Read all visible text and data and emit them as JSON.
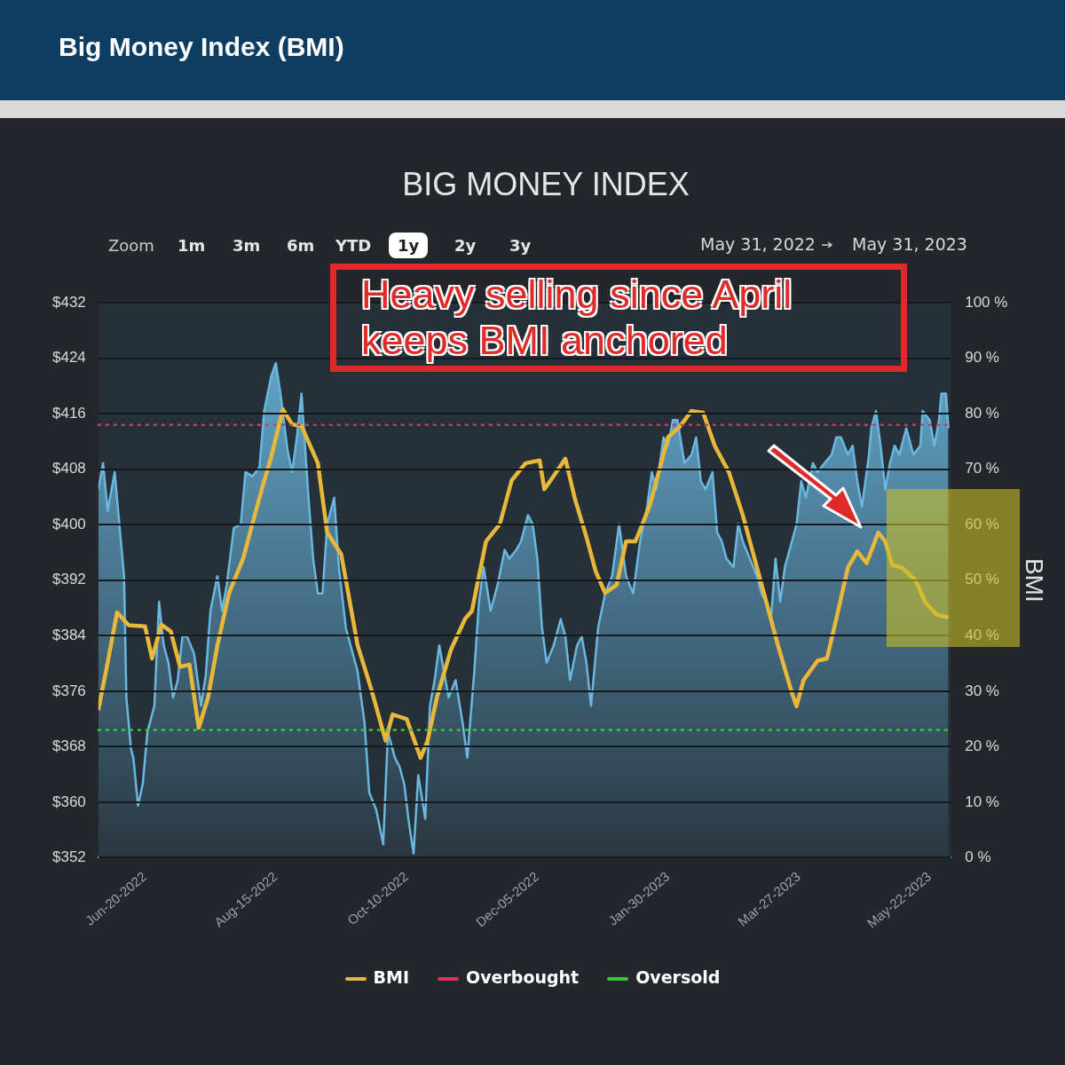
{
  "chart_data": {
    "type": "line",
    "title": "Big Money Index (BMI)",
    "subtitle": "BIG MONEY INDEX",
    "y2label": "BMI",
    "xlim": [
      "2022-05-31",
      "2023-05-31"
    ],
    "xticks": [
      {
        "value": "2022-06-20",
        "label": "Jun-20-2022"
      },
      {
        "value": "2022-08-15",
        "label": "Aug-15-2022"
      },
      {
        "value": "2022-10-10",
        "label": "Oct-10-2022"
      },
      {
        "value": "2022-12-05",
        "label": "Dec-05-2022"
      },
      {
        "value": "2023-01-30",
        "label": "Jan-30-2023"
      },
      {
        "value": "2023-03-27",
        "label": "Mar-27-2023"
      },
      {
        "value": "2023-05-22",
        "label": "May-22-2023"
      }
    ],
    "ylim": [
      352,
      432
    ],
    "yticks": [
      {
        "value": 352,
        "label": "$352"
      },
      {
        "value": 360,
        "label": "$360"
      },
      {
        "value": 368,
        "label": "$368"
      },
      {
        "value": 376,
        "label": "$376"
      },
      {
        "value": 384,
        "label": "$384"
      },
      {
        "value": 392,
        "label": "$392"
      },
      {
        "value": 400,
        "label": "$400"
      },
      {
        "value": 408,
        "label": "$408"
      },
      {
        "value": 416,
        "label": "$416"
      },
      {
        "value": 424,
        "label": "$424"
      },
      {
        "value": 432,
        "label": "$432"
      }
    ],
    "y2lim": [
      0,
      100
    ],
    "y2ticks": [
      {
        "value": 0,
        "label": "0 %"
      },
      {
        "value": 10,
        "label": "10 %"
      },
      {
        "value": 20,
        "label": "20 %"
      },
      {
        "value": 30,
        "label": "30 %"
      },
      {
        "value": 40,
        "label": "40 %"
      },
      {
        "value": 50,
        "label": "50 %"
      },
      {
        "value": 60,
        "label": "60 %"
      },
      {
        "value": 70,
        "label": "70 %"
      },
      {
        "value": 80,
        "label": "80 %"
      },
      {
        "value": 90,
        "label": "90 %"
      },
      {
        "value": 100,
        "label": "100 %"
      }
    ],
    "grid": "y",
    "legend": "bottom",
    "marker": "none",
    "line_style": "solid",
    "series": [
      {
        "type": "area",
        "color": "#6ab7e0",
        "x": [
          "2022-05-31",
          "2022-06-02",
          "2022-06-04",
          "2022-06-07",
          "2022-06-09",
          "2022-06-11",
          "2022-06-12",
          "2022-06-14",
          "2022-06-15",
          "2022-06-17",
          "2022-06-19",
          "2022-06-21",
          "2022-06-23",
          "2022-06-24",
          "2022-06-26",
          "2022-06-28",
          "2022-06-30",
          "2022-07-02",
          "2022-07-04",
          "2022-07-06",
          "2022-07-08",
          "2022-07-11",
          "2022-07-14",
          "2022-07-16",
          "2022-07-18",
          "2022-07-21",
          "2022-07-23",
          "2022-07-25",
          "2022-07-28",
          "2022-07-31",
          "2022-08-02",
          "2022-08-05",
          "2022-08-08",
          "2022-08-10",
          "2022-08-13",
          "2022-08-15",
          "2022-08-17",
          "2022-08-20",
          "2022-08-22",
          "2022-08-24",
          "2022-08-26",
          "2022-08-29",
          "2022-08-31",
          "2022-09-02",
          "2022-09-04",
          "2022-09-06",
          "2022-09-09",
          "2022-09-11",
          "2022-09-14",
          "2022-09-16",
          "2022-09-19",
          "2022-09-22",
          "2022-09-24",
          "2022-09-27",
          "2022-09-30",
          "2022-10-02",
          "2022-10-05",
          "2022-10-07",
          "2022-10-09",
          "2022-10-11",
          "2022-10-13",
          "2022-10-15",
          "2022-10-18",
          "2022-10-20",
          "2022-10-22",
          "2022-10-24",
          "2022-10-26",
          "2022-10-28",
          "2022-10-31",
          "2022-11-03",
          "2022-11-05",
          "2022-11-08",
          "2022-11-10",
          "2022-11-12",
          "2022-11-15",
          "2022-11-18",
          "2022-11-21",
          "2022-11-23",
          "2022-11-26",
          "2022-11-28",
          "2022-12-01",
          "2022-12-03",
          "2022-12-05",
          "2022-12-07",
          "2022-12-09",
          "2022-12-12",
          "2022-12-15",
          "2022-12-17",
          "2022-12-19",
          "2022-12-22",
          "2022-12-24",
          "2022-12-26",
          "2022-12-28",
          "2022-12-31",
          "2023-01-03",
          "2023-01-06",
          "2023-01-09",
          "2023-01-12",
          "2023-01-15",
          "2023-01-18",
          "2023-01-21",
          "2023-01-23",
          "2023-01-25",
          "2023-01-28",
          "2023-01-30",
          "2023-02-01",
          "2023-02-03",
          "2023-02-06",
          "2023-02-09",
          "2023-02-11",
          "2023-02-13",
          "2023-02-15",
          "2023-02-18",
          "2023-02-20",
          "2023-02-22",
          "2023-02-24",
          "2023-02-27",
          "2023-03-01",
          "2023-03-03",
          "2023-03-06",
          "2023-03-09",
          "2023-03-11",
          "2023-03-13",
          "2023-03-15",
          "2023-03-17",
          "2023-03-19",
          "2023-03-21",
          "2023-03-24",
          "2023-03-26",
          "2023-03-28",
          "2023-03-30",
          "2023-04-02",
          "2023-04-04",
          "2023-04-07",
          "2023-04-10",
          "2023-04-12",
          "2023-04-14",
          "2023-04-17",
          "2023-04-19",
          "2023-04-21",
          "2023-04-23",
          "2023-04-26",
          "2023-04-27",
          "2023-04-29",
          "2023-05-01",
          "2023-05-03",
          "2023-05-05",
          "2023-05-07",
          "2023-05-09",
          "2023-05-12",
          "2023-05-14",
          "2023-05-15",
          "2023-05-18",
          "2023-05-19",
          "2023-05-22",
          "2023-05-24",
          "2023-05-26",
          "2023-05-27",
          "2023-05-29",
          "2023-05-30"
        ],
        "values": [
          405.1,
          408.9,
          402,
          407.6,
          400.1,
          392.6,
          375.1,
          367.6,
          366.4,
          359.5,
          362.6,
          370.1,
          372.6,
          373.9,
          388.9,
          382.6,
          380.1,
          375.1,
          377.6,
          383.9,
          383.9,
          381.4,
          373.9,
          378.3,
          387.6,
          392.6,
          387.6,
          391.4,
          399.5,
          400.1,
          407.6,
          407,
          408.3,
          416.4,
          421.4,
          423.3,
          418.9,
          410.8,
          407.6,
          412.6,
          418.9,
          403.9,
          395.1,
          390.1,
          390.1,
          400.1,
          403.9,
          393.9,
          385.1,
          382.6,
          378.9,
          371.4,
          361.4,
          358.9,
          353.9,
          370.1,
          366.4,
          365.1,
          362.6,
          357,
          352.6,
          363.9,
          357.6,
          373.9,
          377.6,
          382.6,
          378.9,
          375.1,
          377.6,
          371.4,
          366.4,
          378.9,
          388.9,
          393.9,
          387.6,
          391.4,
          396.4,
          395.1,
          396.4,
          397.6,
          401.4,
          400.1,
          395.1,
          385.1,
          380.1,
          382.6,
          386.4,
          383.9,
          377.6,
          382.6,
          383.9,
          380.1,
          373.9,
          385.1,
          390.1,
          392.6,
          400.1,
          392.6,
          390.1,
          397.6,
          402.6,
          407.6,
          405.1,
          412.6,
          411.4,
          415.1,
          415.1,
          408.9,
          410.1,
          412.6,
          406.3,
          405.1,
          407.6,
          398.9,
          397.6,
          395.1,
          393.9,
          400.1,
          397.6,
          395.1,
          392.6,
          390.1,
          388.9,
          386.4,
          395.1,
          388.9,
          393.9,
          397.6,
          400.1,
          406.3,
          403.9,
          408.9,
          407.6,
          408.9,
          410.1,
          412.6,
          412.6,
          410.1,
          411.4,
          406.3,
          402.6,
          410.1,
          413.9,
          416.4,
          411.4,
          405.1,
          408.9,
          411.4,
          410.1,
          413.9,
          411.4,
          410.1,
          411.4,
          416.4,
          415.1,
          411.4,
          415.1,
          418.9,
          418.9,
          413.9
        ]
      },
      {
        "type": "line",
        "name": "BMI",
        "color": "#e8b83a",
        "axis": "y2",
        "x": [
          "2022-05-31",
          "2022-06-04",
          "2022-06-08",
          "2022-06-13",
          "2022-06-20",
          "2022-06-23",
          "2022-06-27",
          "2022-07-01",
          "2022-07-05",
          "2022-07-09",
          "2022-07-13",
          "2022-07-17",
          "2022-07-21",
          "2022-07-26",
          "2022-08-01",
          "2022-08-05",
          "2022-08-09",
          "2022-08-13",
          "2022-08-18",
          "2022-08-22",
          "2022-08-26",
          "2022-09-02",
          "2022-09-06",
          "2022-09-12",
          "2022-09-15",
          "2022-09-19",
          "2022-09-25",
          "2022-10-01",
          "2022-10-04",
          "2022-10-10",
          "2022-10-16",
          "2022-10-19",
          "2022-10-23",
          "2022-10-29",
          "2022-11-04",
          "2022-11-07",
          "2022-11-13",
          "2022-11-19",
          "2022-11-24",
          "2022-11-30",
          "2022-12-06",
          "2022-12-08",
          "2022-12-12",
          "2022-12-17",
          "2022-12-21",
          "2022-12-26",
          "2022-12-30",
          "2023-01-03",
          "2023-01-08",
          "2023-01-12",
          "2023-01-16",
          "2023-01-22",
          "2023-01-26",
          "2023-01-30",
          "2023-02-04",
          "2023-02-09",
          "2023-02-14",
          "2023-02-19",
          "2023-02-25",
          "2023-03-03",
          "2023-03-06",
          "2023-03-12",
          "2023-03-18",
          "2023-03-24",
          "2023-03-26",
          "2023-03-29",
          "2023-04-04",
          "2023-04-08",
          "2023-04-12",
          "2023-04-17",
          "2023-04-21",
          "2023-04-25",
          "2023-04-30",
          "2023-05-03",
          "2023-05-06",
          "2023-05-10",
          "2023-05-16",
          "2023-05-20",
          "2023-05-25",
          "2023-05-30"
        ],
        "values": [
          26.6,
          35.2,
          44.2,
          41.9,
          41.7,
          35.9,
          42,
          40.8,
          34.4,
          34.8,
          23.4,
          28.9,
          38.3,
          47.7,
          53.9,
          60.2,
          66.4,
          72.2,
          80.8,
          78.1,
          77.8,
          71.1,
          58.6,
          54.7,
          47.7,
          38.3,
          30.2,
          21.1,
          25.8,
          25,
          18,
          21.1,
          28.9,
          37.5,
          43,
          44.5,
          57,
          60.2,
          68,
          71.1,
          71.6,
          66.4,
          68.8,
          71.9,
          64.8,
          57.8,
          51.6,
          47.7,
          49.2,
          57,
          57,
          63.3,
          69.5,
          75.8,
          77.7,
          80.5,
          80.2,
          74.2,
          69.5,
          61.7,
          57,
          47.7,
          38.3,
          29.7,
          27.3,
          32,
          35.5,
          35.9,
          43,
          52.3,
          55.2,
          53.1,
          58.6,
          57,
          52.7,
          52.3,
          50,
          46.1,
          43.8,
          43.3
        ]
      }
    ],
    "ref_lines": [
      {
        "axis": "y2",
        "value": 78,
        "label": "Overbought",
        "color": "#d6365a",
        "line_style": "dotted"
      },
      {
        "axis": "y2",
        "value": 23,
        "label": "Oversold",
        "color": "#3ec43e",
        "line_style": "dotted"
      }
    ],
    "annotations": [
      "Heavy selling since April keeps BMI anchored",
      "Zoom",
      "1m",
      "3m",
      "6m",
      "YTD",
      "1y",
      "2y",
      "3y",
      "May 31, 2022",
      "May 31, 2023"
    ]
  }
}
